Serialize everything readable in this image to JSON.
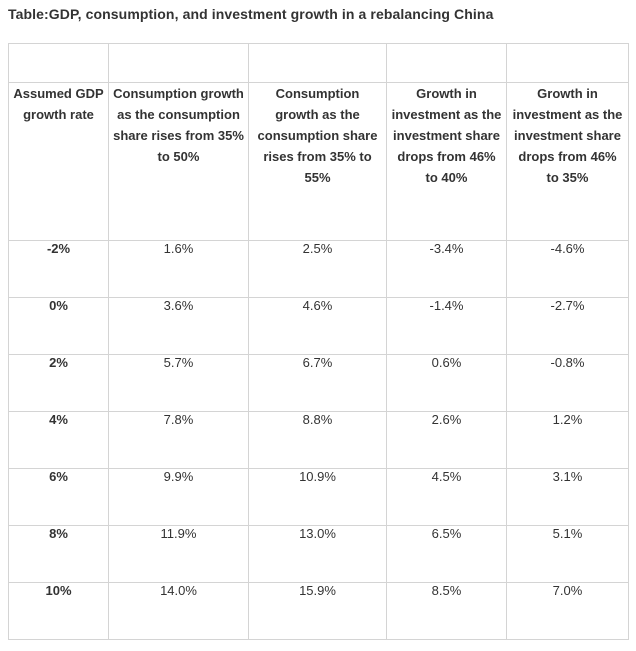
{
  "title": "Table:GDP, consumption, and investment growth in a rebalancing China",
  "table": {
    "headers": [
      "Assumed GDP growth rate",
      "Consumption growth as the consumption share rises from 35% to 50%",
      "Consumption growth as the consumption share rises from 35% to 55%",
      "Growth in investment as the investment share drops from 46% to 40%",
      "Growth in investment as the investment share drops from 46% to 35%"
    ],
    "rows": [
      [
        "-2%",
        "1.6%",
        "2.5%",
        "-3.4%",
        "-4.6%"
      ],
      [
        "0%",
        "3.6%",
        "4.6%",
        "-1.4%",
        "-2.7%"
      ],
      [
        "2%",
        "5.7%",
        "6.7%",
        "0.6%",
        "-0.8%"
      ],
      [
        "4%",
        "7.8%",
        "8.8%",
        "2.6%",
        "1.2%"
      ],
      [
        "6%",
        "9.9%",
        "10.9%",
        "4.5%",
        "3.1%"
      ],
      [
        "8%",
        "11.9%",
        "13.0%",
        "6.5%",
        "5.1%"
      ],
      [
        "10%",
        "14.0%",
        "15.9%",
        "8.5%",
        "7.0%"
      ]
    ]
  }
}
